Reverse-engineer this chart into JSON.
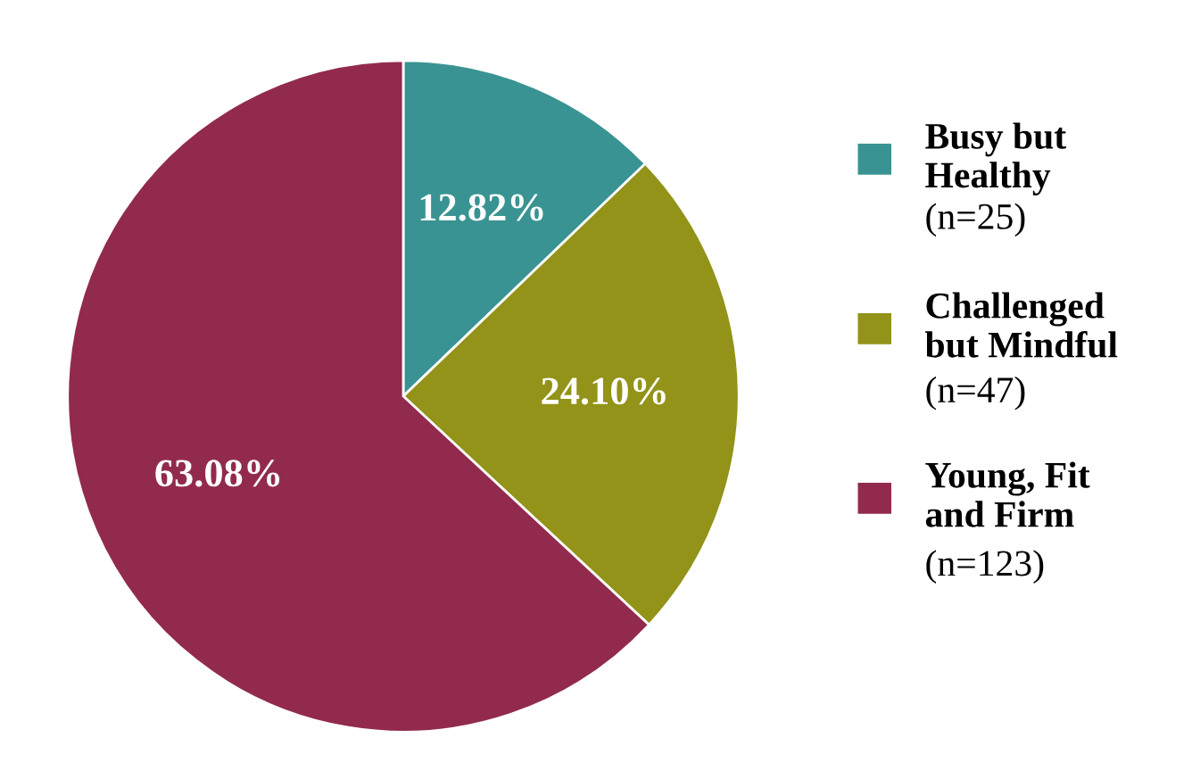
{
  "chart_data": {
    "type": "pie",
    "categories": [
      "Busy but\nHealthy",
      "Challenged\nbut Mindful",
      "Young, Fit\nand Firm"
    ],
    "values": [
      12.82,
      24.1,
      63.08
    ],
    "value_labels": [
      "12.82%",
      "24.10%",
      "63.08%"
    ],
    "colors": [
      "#3a9393",
      "#929318",
      "#922a4e"
    ],
    "annotations": [
      "(n=25)",
      "(n=47)",
      "(n=123)"
    ],
    "legend": "right"
  }
}
